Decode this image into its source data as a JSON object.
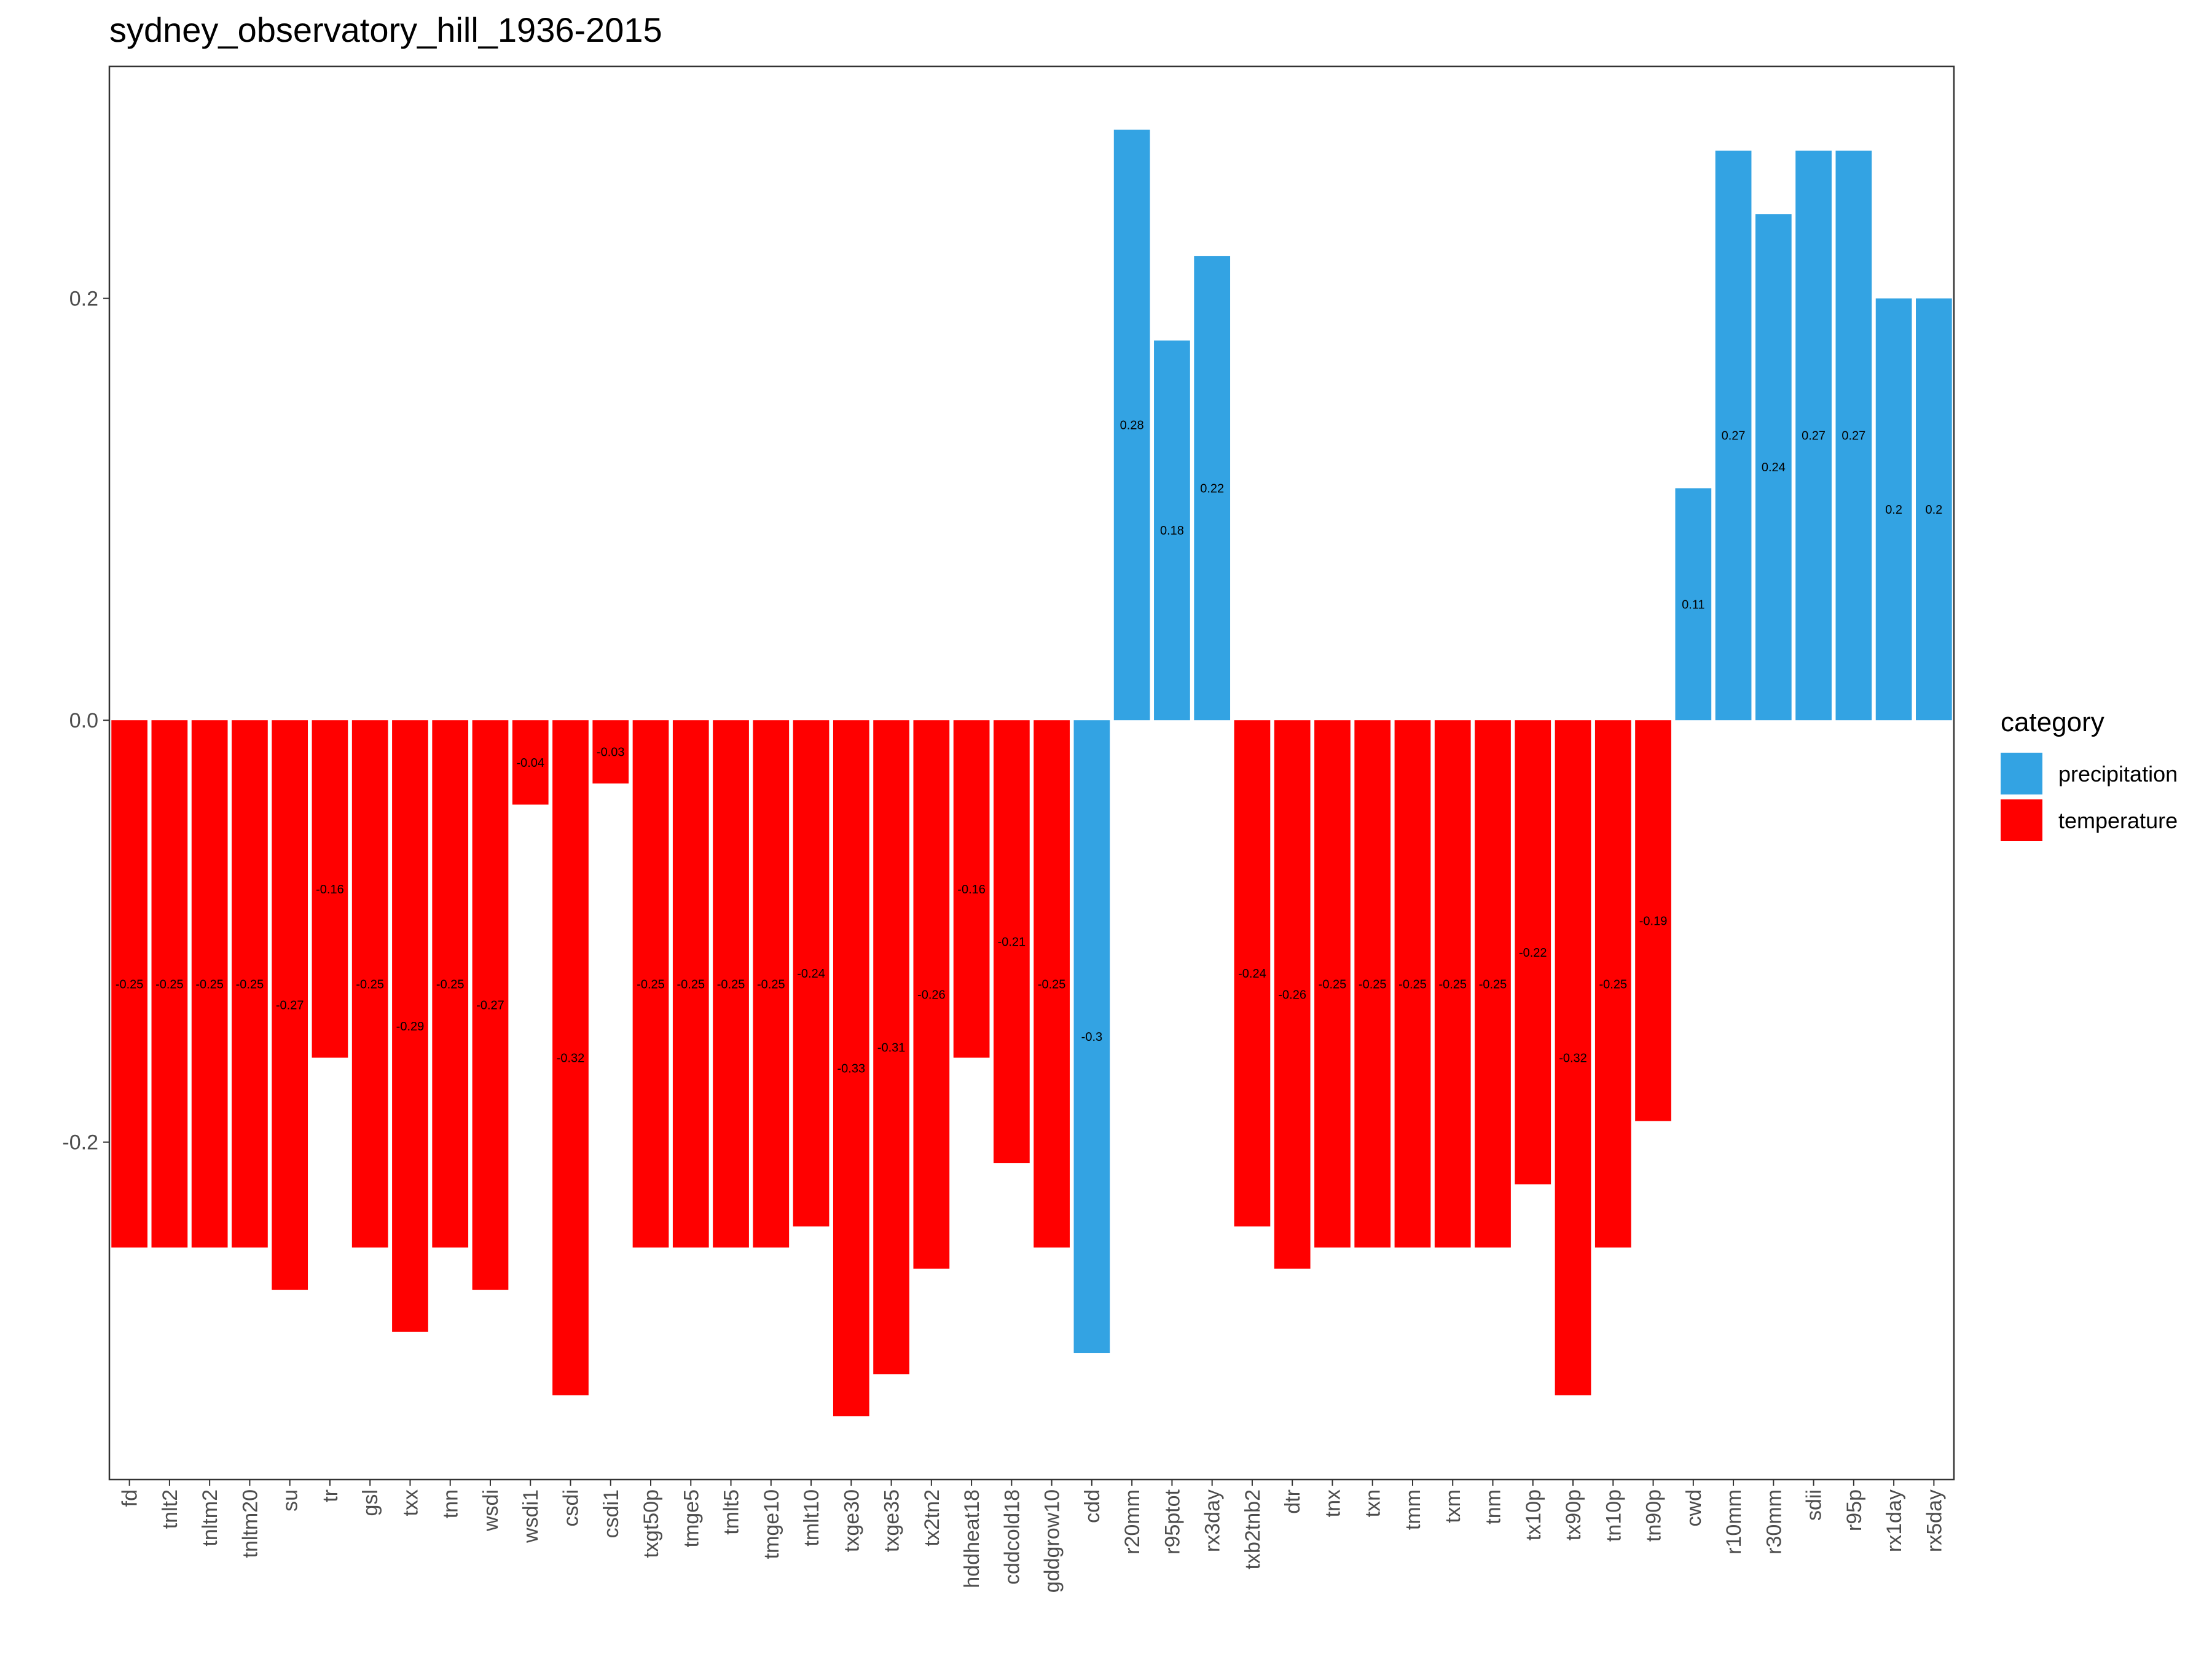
{
  "chart_data": {
    "type": "bar",
    "title": "sydney_observatory_hill_1936-2015",
    "xlabel": "",
    "ylabel": "",
    "ylim": [
      -0.36,
      0.31
    ],
    "yticks": [
      -0.2,
      0.0,
      0.2
    ],
    "ytick_labels": [
      "-0.2",
      "0.0",
      "0.2"
    ],
    "grid": false,
    "legend": {
      "title": "category",
      "position": "right",
      "entries": [
        {
          "name": "precipitation",
          "color": "#33a3e3"
        },
        {
          "name": "temperature",
          "color": "#ff0000"
        }
      ]
    },
    "categories": [
      "fd",
      "tnlt2",
      "tnltm2",
      "tnltm20",
      "su",
      "tr",
      "gsl",
      "txx",
      "tnn",
      "wsdi",
      "wsdi1",
      "csdi",
      "csdi1",
      "txgt50p",
      "tmge5",
      "tmlt5",
      "tmge10",
      "tmlt10",
      "txge30",
      "txge35",
      "tx2tn2",
      "hddheat18",
      "cddcold18",
      "gddgrow10",
      "cdd",
      "r20mm",
      "r95ptot",
      "rx3day",
      "txb2tnb2",
      "dtr",
      "tnx",
      "txn",
      "tmm",
      "txm",
      "tnm",
      "tx10p",
      "tx90p",
      "tn10p",
      "tn90p",
      "cwd",
      "r10mm",
      "r30mm",
      "sdii",
      "r95p",
      "rx1day",
      "rx5day"
    ],
    "values": [
      -0.25,
      -0.25,
      -0.25,
      -0.25,
      -0.27,
      -0.16,
      -0.25,
      -0.29,
      -0.25,
      -0.27,
      -0.04,
      -0.32,
      -0.03,
      -0.25,
      -0.25,
      -0.25,
      -0.25,
      -0.24,
      -0.33,
      -0.31,
      -0.26,
      -0.16,
      -0.21,
      -0.25,
      -0.3,
      0.28,
      0.18,
      0.22,
      -0.24,
      -0.26,
      -0.25,
      -0.25,
      -0.25,
      -0.25,
      -0.25,
      -0.22,
      -0.32,
      -0.25,
      -0.19,
      0.11,
      0.27,
      0.24,
      0.27,
      0.27,
      0.2,
      0.2
    ],
    "value_labels": [
      "-0.25",
      "-0.25",
      "-0.25",
      "-0.25",
      "-0.27",
      "-0.16",
      "-0.25",
      "-0.29",
      "-0.25",
      "-0.27",
      "-0.04",
      "-0.32",
      "-0.03",
      "-0.25",
      "-0.25",
      "-0.25",
      "-0.25",
      "-0.24",
      "-0.33",
      "-0.31",
      "-0.26",
      "-0.16",
      "-0.21",
      "-0.25",
      "-0.3",
      "0.28",
      "0.18",
      "0.22",
      "-0.24",
      "-0.26",
      "-0.25",
      "-0.25",
      "-0.25",
      "-0.25",
      "-0.25",
      "-0.22",
      "-0.32",
      "-0.25",
      "-0.19",
      "0.11",
      "0.27",
      "0.24",
      "0.27",
      "0.27",
      "0.2",
      "0.2"
    ],
    "category_group": [
      "temperature",
      "temperature",
      "temperature",
      "temperature",
      "temperature",
      "temperature",
      "temperature",
      "temperature",
      "temperature",
      "temperature",
      "temperature",
      "temperature",
      "temperature",
      "temperature",
      "temperature",
      "temperature",
      "temperature",
      "temperature",
      "temperature",
      "temperature",
      "temperature",
      "temperature",
      "temperature",
      "temperature",
      "precipitation",
      "precipitation",
      "precipitation",
      "precipitation",
      "temperature",
      "temperature",
      "temperature",
      "temperature",
      "temperature",
      "temperature",
      "temperature",
      "temperature",
      "temperature",
      "temperature",
      "temperature",
      "precipitation",
      "precipitation",
      "precipitation",
      "precipitation",
      "precipitation",
      "precipitation",
      "precipitation"
    ]
  }
}
